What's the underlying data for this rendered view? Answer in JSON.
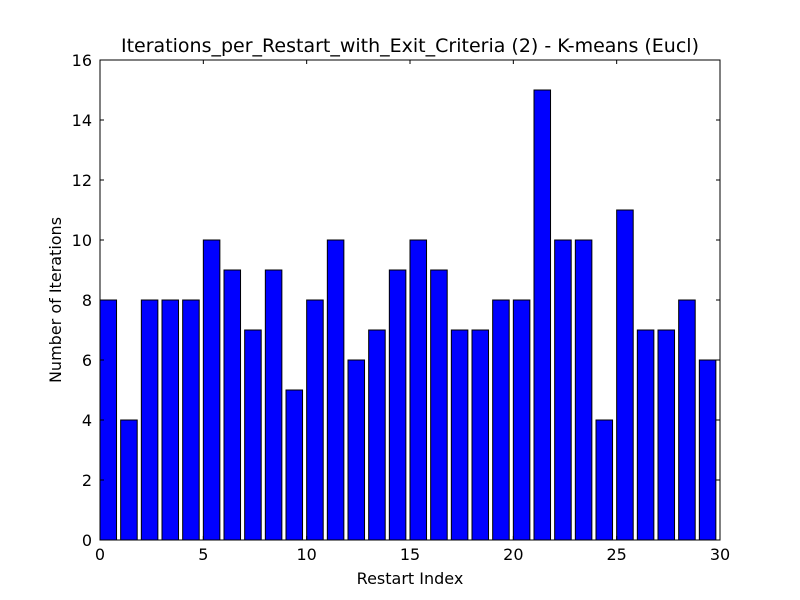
{
  "chart_data": {
    "type": "bar",
    "title": "Iterations_per_Restart_with_Exit_Criteria (2) - K-means (Eucl)",
    "xlabel": "Restart Index",
    "ylabel": "Number of Iterations",
    "x": [
      0,
      1,
      2,
      3,
      4,
      5,
      6,
      7,
      8,
      9,
      10,
      11,
      12,
      13,
      14,
      15,
      16,
      17,
      18,
      19,
      20,
      21,
      22,
      23,
      24,
      25,
      26,
      27,
      28,
      29
    ],
    "values": [
      8,
      4,
      8,
      8,
      8,
      10,
      9,
      7,
      9,
      5,
      8,
      10,
      6,
      7,
      9,
      10,
      9,
      7,
      7,
      8,
      8,
      15,
      10,
      10,
      4,
      11,
      7,
      7,
      8,
      6
    ],
    "bar_width": 0.8,
    "xlim": [
      0,
      30
    ],
    "ylim": [
      0,
      16
    ],
    "xticks": [
      0,
      5,
      10,
      15,
      20,
      25,
      30
    ],
    "yticks": [
      0,
      2,
      4,
      6,
      8,
      10,
      12,
      14,
      16
    ],
    "bar_color": "#0000ff",
    "edge_color": "#000000",
    "grid": false,
    "legend": "none"
  }
}
